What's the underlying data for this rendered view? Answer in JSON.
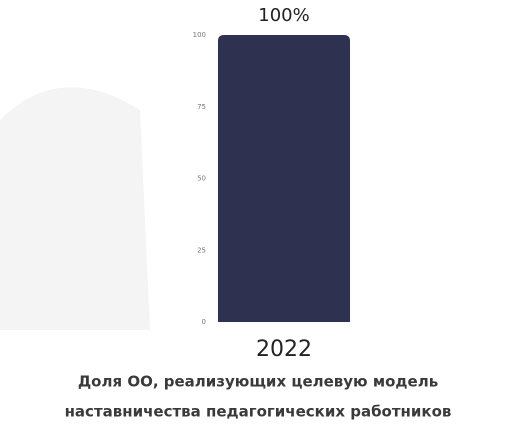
{
  "chart_data": {
    "type": "bar",
    "title": [
      "Доля ОО, реализующих целевую модель",
      "наставничества педагогических работников"
    ],
    "categories": [
      "2022"
    ],
    "values": [
      100
    ],
    "value_labels": [
      "100%"
    ],
    "color": "#2e3250",
    "ylim": [
      0,
      100
    ],
    "yticks": [
      0,
      25,
      50,
      75,
      100
    ],
    "grid": false
  }
}
